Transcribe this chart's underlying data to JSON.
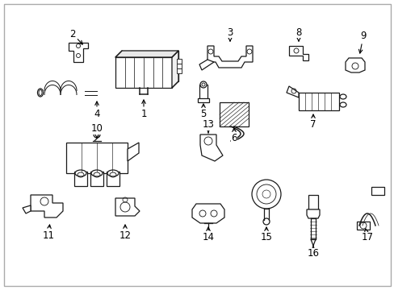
{
  "background_color": "#ffffff",
  "border_color": "#aaaaaa",
  "line_color": "#1a1a1a",
  "text_color": "#000000",
  "font_size": 8.5,
  "fig_width": 4.89,
  "fig_height": 3.6,
  "dpi": 100,
  "lw": 0.9
}
